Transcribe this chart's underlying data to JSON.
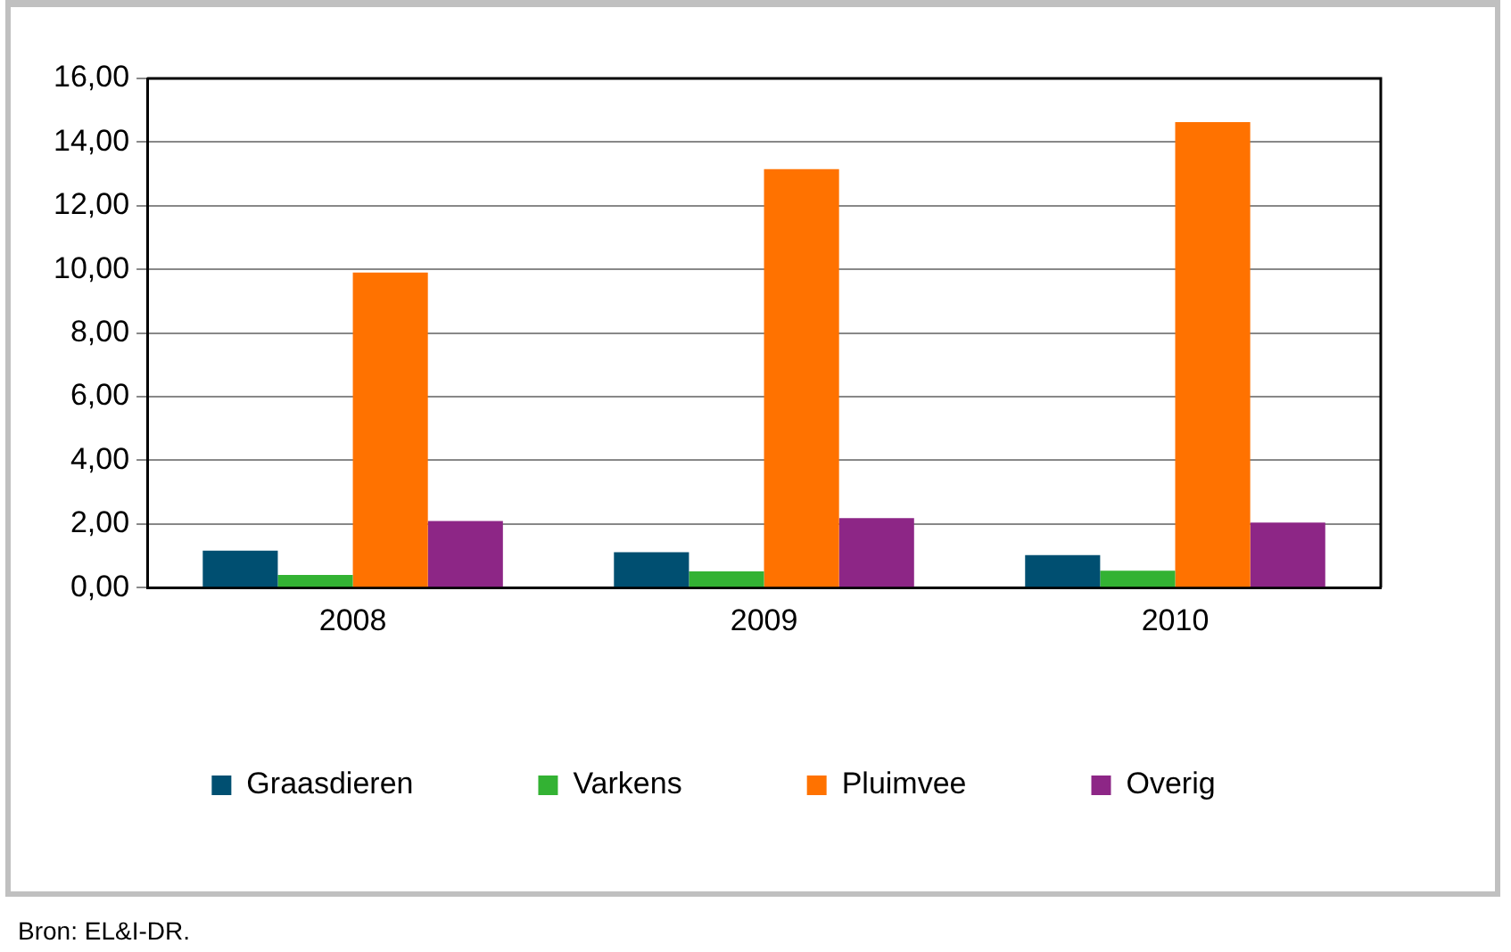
{
  "chart_data": {
    "type": "bar",
    "categories": [
      "2008",
      "2009",
      "2010"
    ],
    "series": [
      {
        "name": "Graasdieren",
        "color": "#004f71",
        "values": [
          1.16,
          1.11,
          1.02
        ]
      },
      {
        "name": "Varkens",
        "color": "#33b233",
        "values": [
          0.4,
          0.51,
          0.53
        ]
      },
      {
        "name": "Pluimvee",
        "color": "#ff7200",
        "values": [
          9.9,
          13.15,
          14.63
        ]
      },
      {
        "name": "Overig",
        "color": "#8d2686",
        "values": [
          2.09,
          2.18,
          2.04
        ]
      }
    ],
    "ylim": [
      0,
      16
    ],
    "yticks": [
      {
        "value": 0,
        "label": "0,00"
      },
      {
        "value": 2,
        "label": "2,00"
      },
      {
        "value": 4,
        "label": "4,00"
      },
      {
        "value": 6,
        "label": "6,00"
      },
      {
        "value": 8,
        "label": "8,00"
      },
      {
        "value": 10,
        "label": "10,00"
      },
      {
        "value": 12,
        "label": "12,00"
      },
      {
        "value": 14,
        "label": "14,00"
      },
      {
        "value": 16,
        "label": "16,00"
      }
    ],
    "grid": "y",
    "legend": "bottom",
    "annotations": [
      "Bron: EL&I-DR."
    ]
  }
}
